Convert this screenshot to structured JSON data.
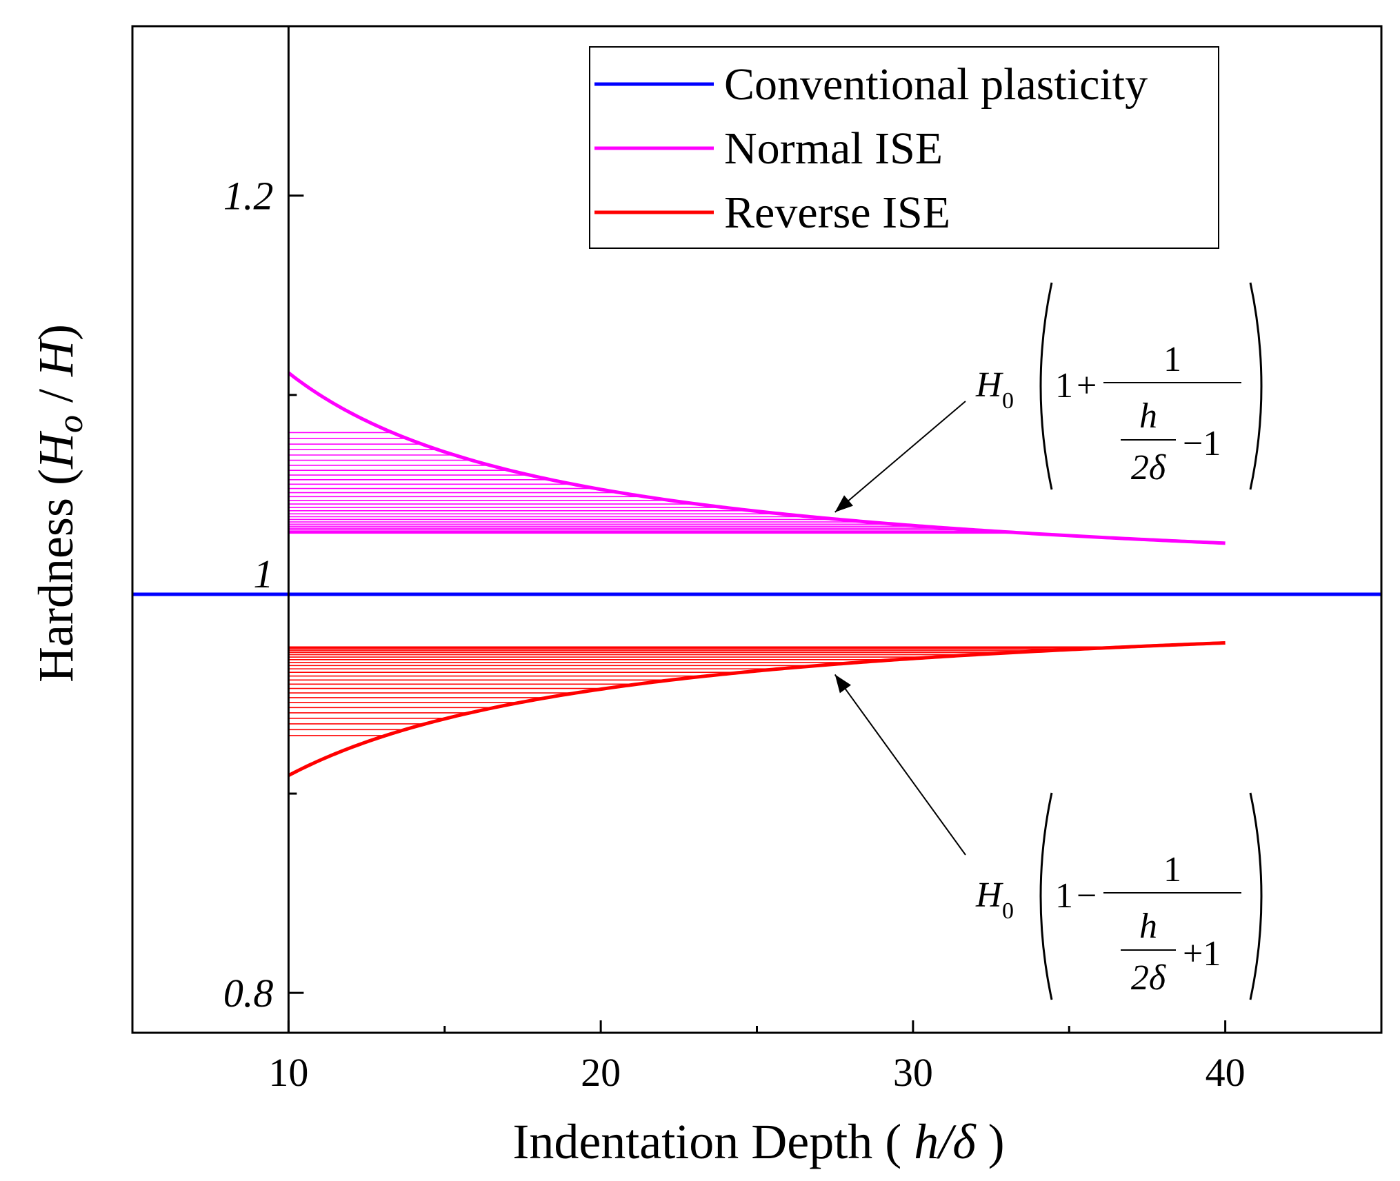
{
  "chart_data": {
    "type": "line",
    "title": "",
    "xlabel": "Indentation Depth ( h/δ )",
    "xlabel_parts": {
      "prefix": "Indentation Depth ( ",
      "var": "h/δ",
      "suffix": " )"
    },
    "ylabel": "Hardness (Ho / H)",
    "ylabel_parts": {
      "prefix": "Hardness (",
      "H": "H",
      "sub": "o",
      "rest": " / ",
      "H2": "H",
      "suffix": ")"
    },
    "xlim": [
      5,
      45
    ],
    "ylim": [
      0.78,
      1.285
    ],
    "x_ticks": [
      10,
      20,
      30,
      40
    ],
    "x_tick_labels": [
      "10",
      "20",
      "30",
      "40"
    ],
    "y_tick_labels": [
      {
        "value": 1.2,
        "label": "1.2"
      },
      {
        "value": 1.0,
        "label": "1"
      },
      {
        "value": 0.8,
        "label": "0.8"
      }
    ],
    "y_minor_ticks": [
      1.1,
      0.9
    ],
    "x_minor_ticks": [
      15,
      25,
      35
    ],
    "y_axis_at_x": 10,
    "delta": 0.5,
    "series": [
      {
        "name": "Conventional plasticity",
        "color": "#0000ff",
        "formula": "H0",
        "x": [
          5,
          45
        ],
        "y": [
          1.0,
          1.0
        ]
      },
      {
        "name": "Normal ISE",
        "color": "#ff00ff",
        "formula": "H0*(1+1/(h/(2δ)-1))",
        "x_range": [
          10,
          40
        ],
        "hatch": true
      },
      {
        "name": "Reverse ISE",
        "color": "#ff0000",
        "formula": "H0*(1-1/(h/(2δ)+1))",
        "x_range": [
          10,
          40
        ],
        "hatch": true
      }
    ],
    "legend_position": "top-right",
    "annotations": [
      {
        "name": "normal-ise-formula",
        "prefix": "H",
        "sub": "0",
        "one": "1",
        "op": "+",
        "numerator": "1",
        "frac_top": "h",
        "frac_bottom": "2δ",
        "tail": "−1",
        "arrow_target_x": 27.5
      },
      {
        "name": "reverse-ise-formula",
        "prefix": "H",
        "sub": "0",
        "one": "1",
        "op": "−",
        "numerator": "1",
        "frac_top": "h",
        "frac_bottom": "2δ",
        "tail": "+1",
        "arrow_target_x": 27.5
      }
    ]
  }
}
